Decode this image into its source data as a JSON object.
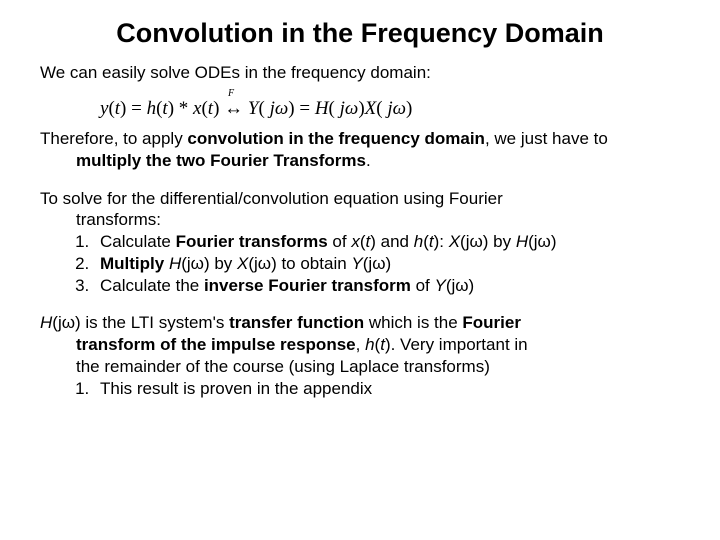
{
  "title": "Convolution in the Frequency Domain",
  "intro": "We can easily solve ODEs in the frequency domain:",
  "equation": {
    "f_label": "F",
    "text": "y(t) = h(t) * x(t) ↔ Y(jω) = H(jω)X(jω)"
  },
  "para2_a": "Therefore, to apply ",
  "para2_b": "convolution in the frequency domain",
  "para2_c": ", we just have to ",
  "para2_d": "multiply the two Fourier Transforms",
  "para2_e": ".",
  "para3": "To solve for the differential/convolution equation using Fourier transforms:",
  "step1_a": "Calculate ",
  "step1_b": "Fourier transforms",
  "step1_c": " of ",
  "step1_x": "x",
  "step1_d": "(",
  "step1_t1": "t",
  "step1_e": ") and ",
  "step1_h": "h",
  "step1_f": "(",
  "step1_t2": "t",
  "step1_g": "): ",
  "step1_X": "X",
  "step1_h2": "(jω) by ",
  "step1_H": "H",
  "step1_i": "(jω)",
  "step2_a": "Multiply ",
  "step2_H": "H",
  "step2_b": "(jω) by ",
  "step2_X": "X",
  "step2_c": "(jω) to obtain ",
  "step2_Y": "Y",
  "step2_d": "(jω)",
  "step3_a": "Calculate the ",
  "step3_b": "inverse Fourier transform",
  "step3_c": " of ",
  "step3_Y": "Y",
  "step3_d": "(jω)",
  "para4_H": "H",
  "para4_a": "(jω) is the LTI system's ",
  "para4_b": "transfer function",
  "para4_c": "  which is the ",
  "para4_d": "Fourier transform of the impulse response",
  "para4_e": ", ",
  "para4_h": "h",
  "para4_f": "(",
  "para4_t": "t",
  "para4_g": ").  Very important in the remainder of the course (using Laplace transforms)",
  "appendix": "This result is proven in the appendix",
  "colors": {
    "background": "#ffffff",
    "text": "#000000"
  },
  "fonts": {
    "body": "Arial",
    "math": "Times New Roman",
    "title_size_pt": 27,
    "body_size_pt": 17
  }
}
